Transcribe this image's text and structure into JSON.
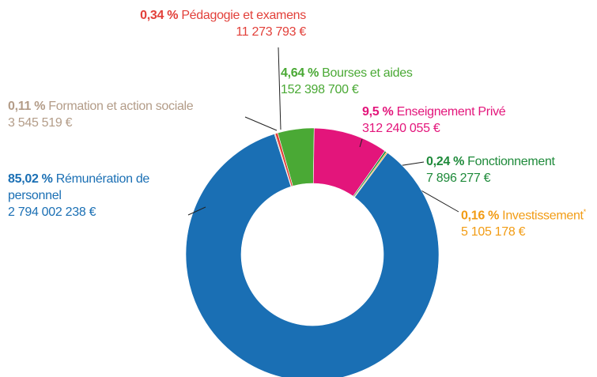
{
  "chart_data": {
    "type": "donut",
    "slices": [
      {
        "name": "Formation et action sociale",
        "value": 0.11,
        "value_label": "0,11 %",
        "amount_label": "3 545 519 €",
        "color": "#b39c88"
      },
      {
        "name": "Pédagogie et examens",
        "value": 0.34,
        "value_label": "0,34 %",
        "amount_label": "11 273 793 €",
        "color": "#e2403a"
      },
      {
        "name": "Bourses et aides",
        "value": 4.64,
        "value_label": "4,64 %",
        "amount_label": "152 398 700 €",
        "color": "#4aa935"
      },
      {
        "name": "Enseignement Privé",
        "value": 9.5,
        "value_label": "9,5 %",
        "amount_label": "312 240 055 €",
        "color": "#e3157b"
      },
      {
        "name": "Fonctionnement",
        "value": 0.24,
        "value_label": "0,24 %",
        "amount_label": "7 896 277 €",
        "color": "#1e8a3a"
      },
      {
        "name": "Investissement",
        "note": "*",
        "value": 0.16,
        "value_label": "0,16 %",
        "amount_label": "5 105 178 €",
        "color": "#f29c14"
      },
      {
        "name": "Rémunération de personnel",
        "value": 85.02,
        "value_label": "85,02 %",
        "amount_label": "2 794 002 238 €",
        "color": "#1a6fb4"
      }
    ]
  }
}
